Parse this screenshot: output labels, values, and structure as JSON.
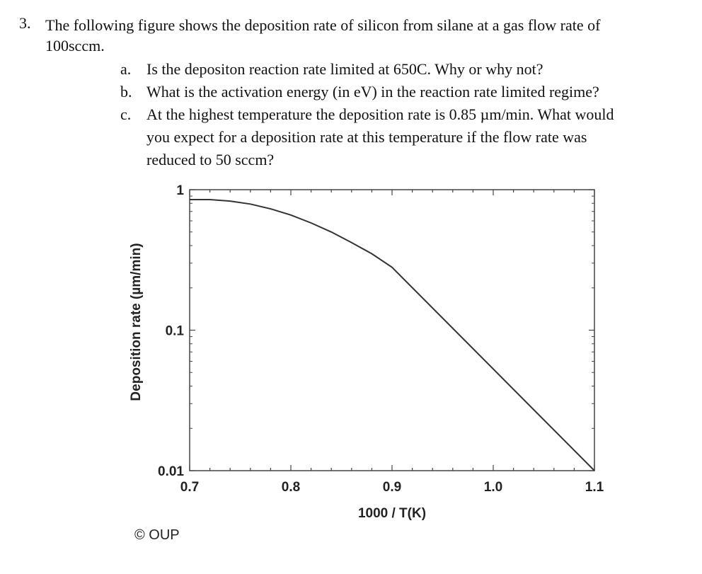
{
  "question": {
    "number": "3.",
    "stem_line1": "The following figure shows the deposition rate of silicon from silane at a gas flow rate of",
    "stem_line2": "100sccm.",
    "parts": [
      {
        "label": "a.",
        "lines": [
          "Is the depositon reaction rate limited at 650C. Why or why not?"
        ]
      },
      {
        "label": "b.",
        "lines": [
          "What is the activation energy (in eV) in the reaction rate limited regime?"
        ]
      },
      {
        "label": "c.",
        "lines": [
          "At the highest temperature the deposition  rate  is 0.85 µm/min. What would",
          "you expect for a deposition rate at this temperature if the flow rate was",
          "reduced to 50 sccm?"
        ]
      }
    ]
  },
  "chart_data": {
    "type": "line",
    "xlabel": "1000 / T(K)",
    "ylabel": "Deposition rate (µm/min)",
    "xlim": [
      0.7,
      1.1
    ],
    "ylim": [
      0.01,
      1
    ],
    "yscale": "log",
    "xticks": [
      "0.7",
      "0.8",
      "0.9",
      "1.0",
      "1.1"
    ],
    "yticks": [
      "0.01",
      "0.1",
      "1"
    ],
    "series": [
      {
        "x": [
          0.7,
          0.72,
          0.74,
          0.76,
          0.78,
          0.8,
          0.82,
          0.84,
          0.86,
          0.88,
          0.9,
          1.1
        ],
        "y": [
          0.85,
          0.85,
          0.83,
          0.79,
          0.73,
          0.66,
          0.58,
          0.5,
          0.42,
          0.35,
          0.28,
          0.01
        ]
      }
    ],
    "copyright": "© OUP"
  }
}
